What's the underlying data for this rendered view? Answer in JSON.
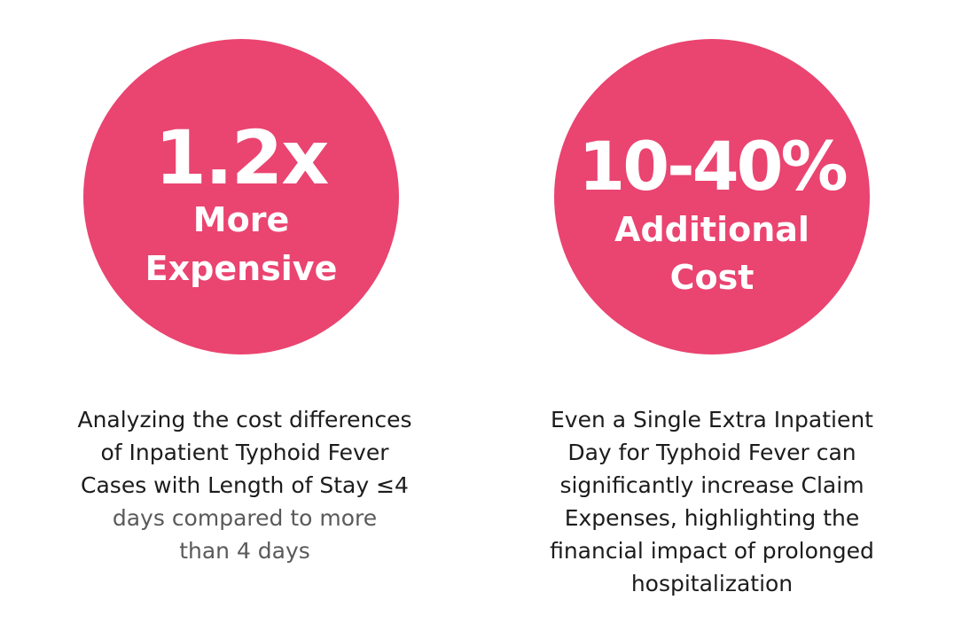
{
  "stats": [
    {
      "value": "1.2x",
      "label_line1": "More",
      "label_line2": "Expensive",
      "description_lines": [
        "Analyzing the cost differences",
        "of Inpatient Typhoid Fever",
        "Cases with Length of Stay ≤4",
        "days compared to more",
        "than 4 days"
      ]
    },
    {
      "value": "10-40%",
      "label_line1": "Additional",
      "label_line2": "Cost",
      "description_lines": [
        "Even a Single Extra Inpatient",
        "Day for Typhoid Fever can",
        "significantly increase Claim",
        "Expenses, highlighting the",
        "financial impact of prolonged",
        "hospitalization"
      ]
    }
  ],
  "colors": {
    "circle": "#ea4470",
    "circle_text": "#ffffff",
    "body_text": "#1c1c1c",
    "muted_text": "#5a5a5a"
  }
}
